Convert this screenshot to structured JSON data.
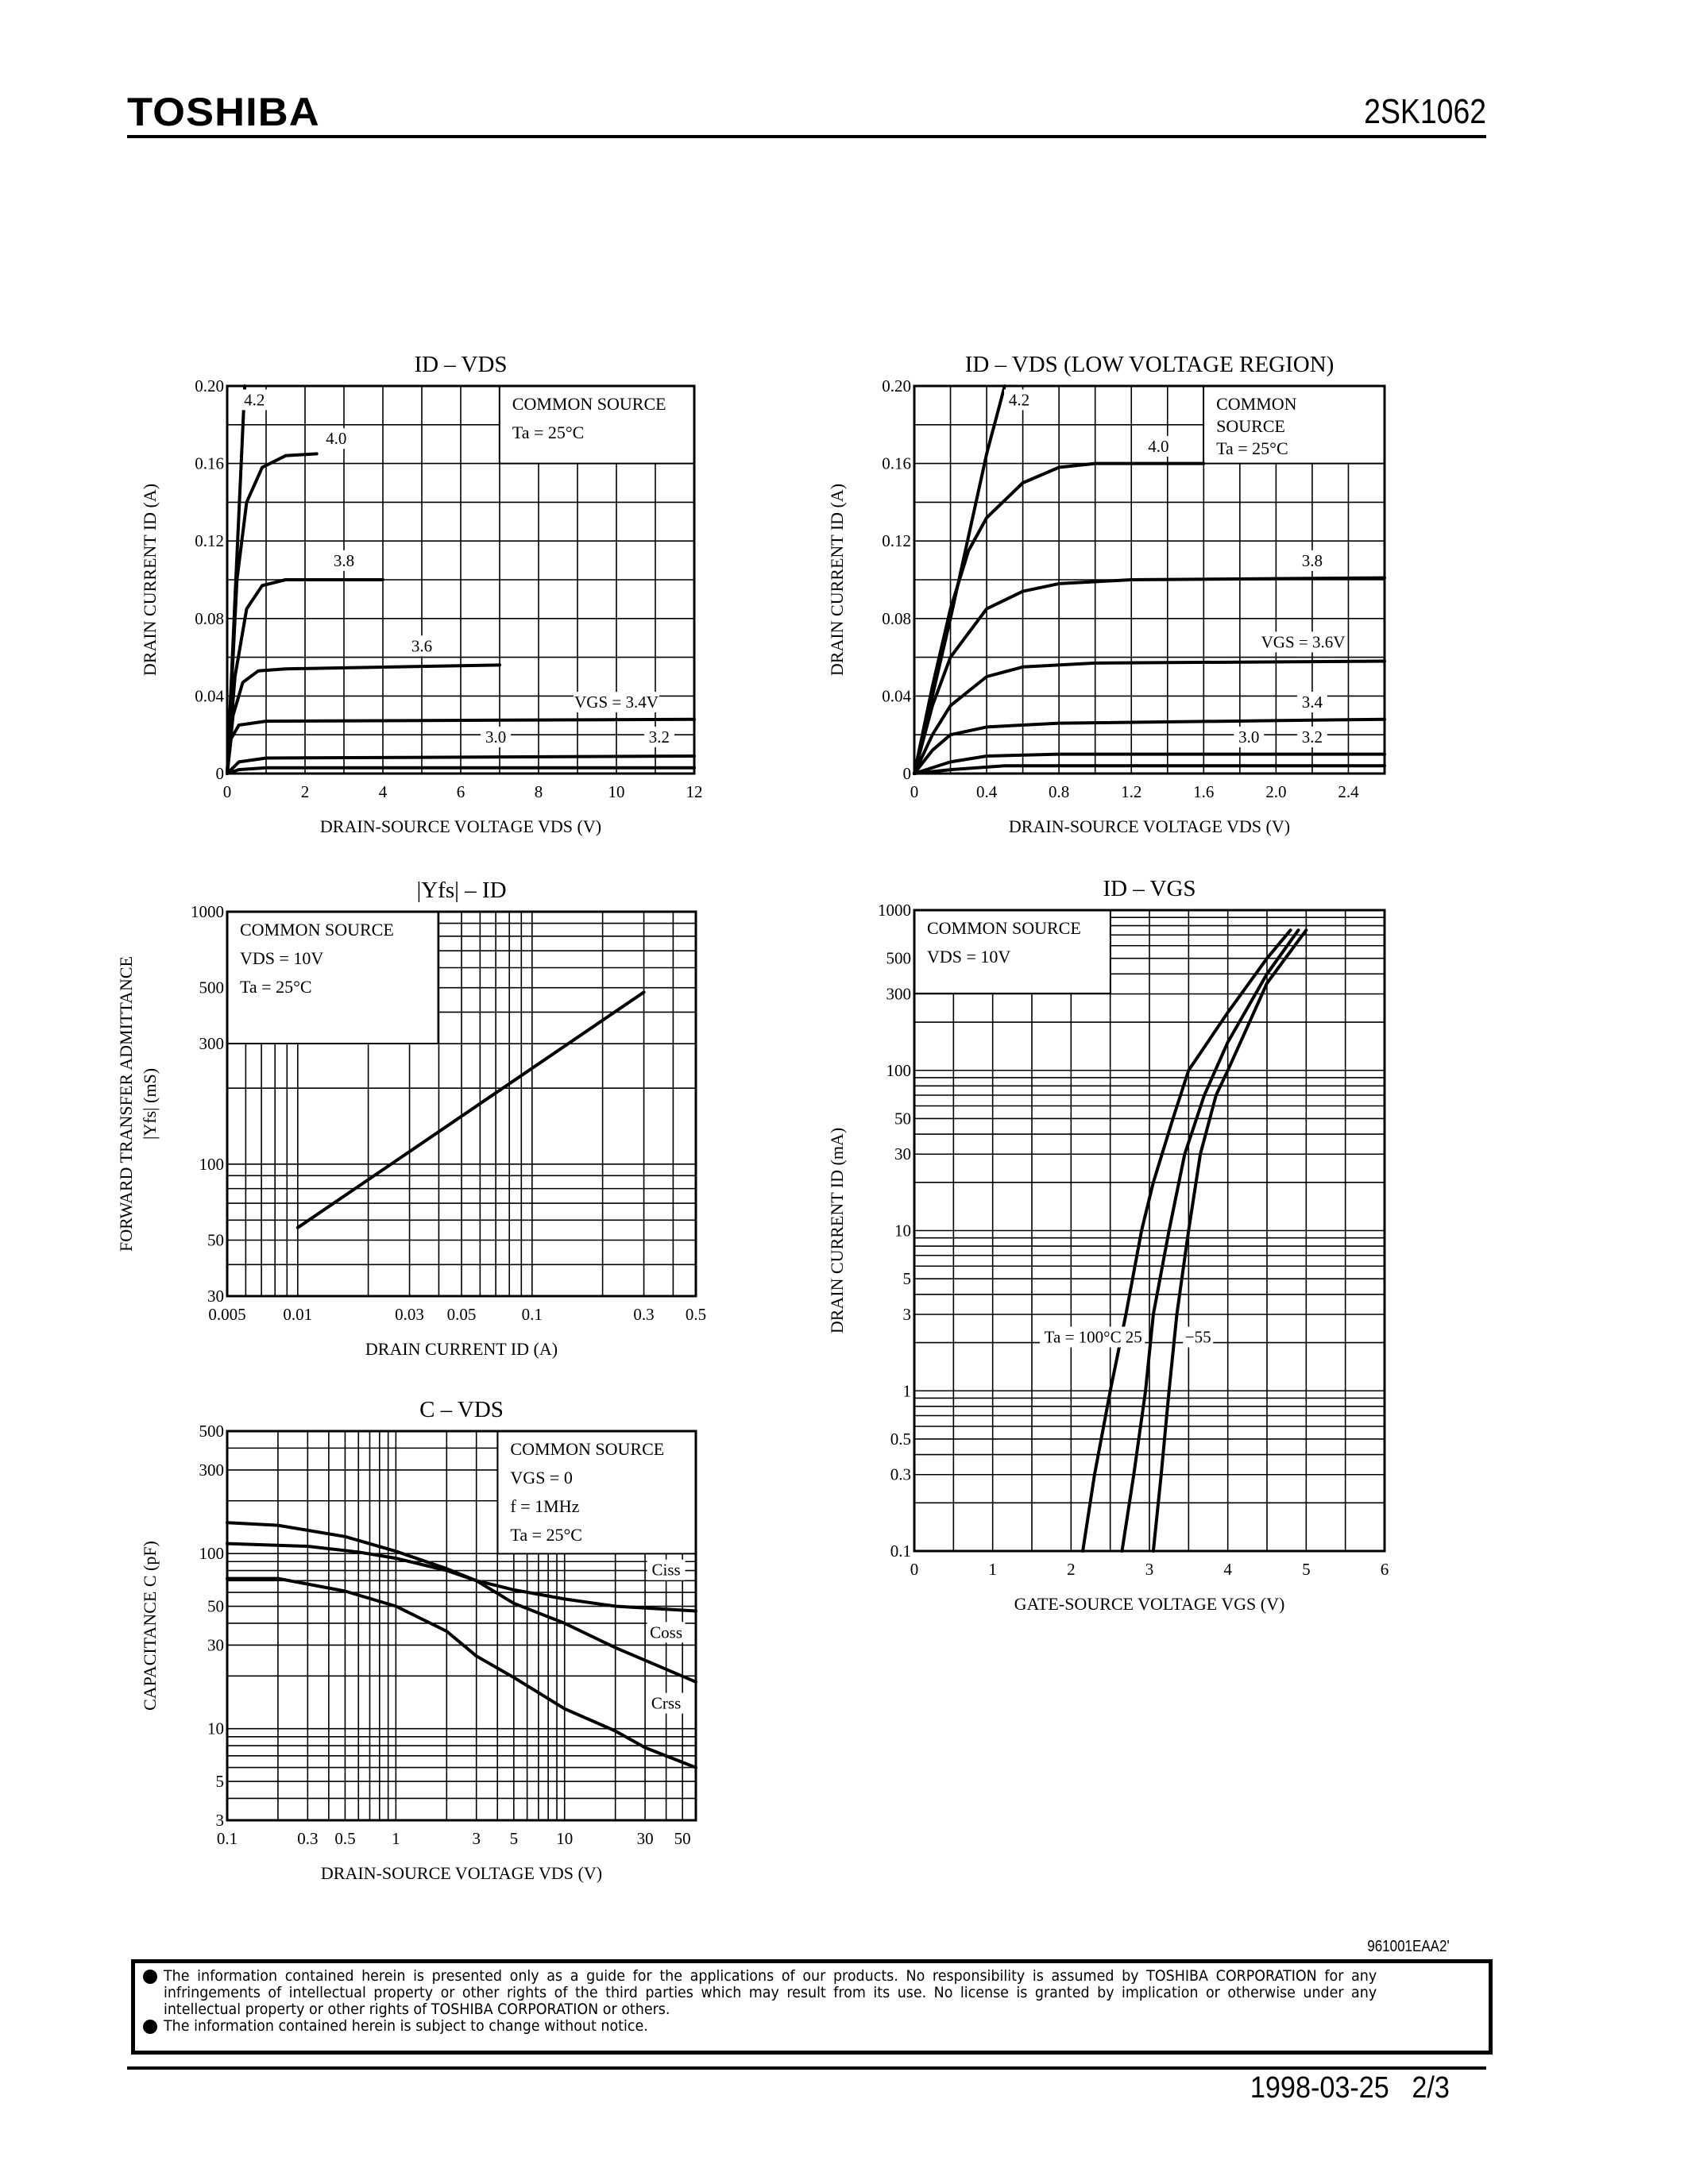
{
  "header": {
    "brand": "TOSHIBA",
    "part_number": "2SK1062"
  },
  "footer": {
    "doc_code": "961001EAA2'",
    "notices": [
      "The information contained herein is presented only as a guide for the applications of our products. No responsibility is assumed by TOSHIBA CORPORATION for any infringements of intellectual property or other rights of the third parties which may result from its use. No license is granted by implication or otherwise under any intellectual property or other rights of TOSHIBA CORPORATION or others.",
      "The information contained herein is subject to change without notice."
    ],
    "date": "1998-03-25",
    "page": "2/3"
  },
  "chart_data": [
    {
      "type": "line",
      "title": "ID – VDS",
      "xlabel": "DRAIN-SOURCE VOLTAGE   VDS   (V)",
      "ylabel": [
        "DRAIN CURRENT   ID   (A)"
      ],
      "xscale": "linear",
      "yscale": "linear",
      "xlim": [
        0,
        12
      ],
      "ylim": [
        0,
        0.2
      ],
      "xticks": [
        0,
        2,
        4,
        6,
        8,
        10,
        12
      ],
      "xtick_labels": [
        "0",
        "2",
        "4",
        "6",
        "8",
        "10",
        "12"
      ],
      "yticks": [
        0,
        0.04,
        0.08,
        0.12,
        0.16,
        0.2
      ],
      "ytick_labels": [
        "0",
        "0.04",
        "0.08",
        "0.12",
        "0.16",
        "0.20"
      ],
      "grid": true,
      "legend": "top-right",
      "conditions": [
        "COMMON SOURCE",
        "Ta = 25°C"
      ],
      "series": [
        {
          "name": "4.2",
          "points": [
            [
              0,
              0
            ],
            [
              0.2,
              0.09
            ],
            [
              0.45,
              0.2
            ]
          ]
        },
        {
          "name": "4.0",
          "points": [
            [
              0,
              0
            ],
            [
              0.25,
              0.1
            ],
            [
              0.5,
              0.14
            ],
            [
              0.9,
              0.158
            ],
            [
              1.5,
              0.164
            ],
            [
              2.3,
              0.165
            ]
          ]
        },
        {
          "name": "3.8",
          "points": [
            [
              0,
              0
            ],
            [
              0.2,
              0.05
            ],
            [
              0.5,
              0.085
            ],
            [
              0.9,
              0.097
            ],
            [
              1.5,
              0.1
            ],
            [
              4,
              0.1
            ]
          ]
        },
        {
          "name": "3.6",
          "points": [
            [
              0,
              0
            ],
            [
              0.15,
              0.03
            ],
            [
              0.4,
              0.047
            ],
            [
              0.8,
              0.053
            ],
            [
              1.5,
              0.054
            ],
            [
              7,
              0.056
            ]
          ]
        },
        {
          "name": "VGS = 3.4V",
          "points": [
            [
              0,
              0
            ],
            [
              0.1,
              0.018
            ],
            [
              0.3,
              0.025
            ],
            [
              1,
              0.027
            ],
            [
              12,
              0.028
            ]
          ]
        },
        {
          "name": "3.2",
          "points": [
            [
              0,
              0
            ],
            [
              0.3,
              0.006
            ],
            [
              1,
              0.008
            ],
            [
              12,
              0.009
            ]
          ]
        },
        {
          "name": "3.0",
          "points": [
            [
              0,
              0
            ],
            [
              0.3,
              0.002
            ],
            [
              1,
              0.003
            ],
            [
              12,
              0.003
            ]
          ]
        }
      ]
    },
    {
      "type": "line",
      "title": "ID – VDS  (LOW VOLTAGE REGION)",
      "xlabel": "DRAIN-SOURCE VOLTAGE   VDS   (V)",
      "ylabel": [
        "DRAIN CURRENT   ID   (A)"
      ],
      "xscale": "linear",
      "yscale": "linear",
      "xlim": [
        0,
        2.6
      ],
      "ylim": [
        0,
        0.2
      ],
      "xticks": [
        0,
        0.4,
        0.8,
        1.2,
        1.6,
        2.0,
        2.4
      ],
      "xtick_labels": [
        "0",
        "0.4",
        "0.8",
        "1.2",
        "1.6",
        "2.0",
        "2.4"
      ],
      "yticks": [
        0,
        0.04,
        0.08,
        0.12,
        0.16,
        0.2
      ],
      "ytick_labels": [
        "0",
        "0.04",
        "0.08",
        "0.12",
        "0.16",
        "0.20"
      ],
      "grid": true,
      "legend": "top-right",
      "conditions": [
        "COMMON",
        "SOURCE",
        "Ta = 25°C"
      ],
      "series": [
        {
          "name": "4.2",
          "points": [
            [
              0,
              0
            ],
            [
              0.2,
              0.08
            ],
            [
              0.4,
              0.165
            ],
            [
              0.5,
              0.2
            ]
          ]
        },
        {
          "name": "4.0",
          "points": [
            [
              0,
              0
            ],
            [
              0.1,
              0.045
            ],
            [
              0.2,
              0.085
            ],
            [
              0.3,
              0.115
            ],
            [
              0.4,
              0.132
            ],
            [
              0.6,
              0.15
            ],
            [
              0.8,
              0.158
            ],
            [
              1.0,
              0.16
            ],
            [
              1.6,
              0.16
            ]
          ]
        },
        {
          "name": "3.8",
          "points": [
            [
              0,
              0
            ],
            [
              0.1,
              0.035
            ],
            [
              0.2,
              0.06
            ],
            [
              0.4,
              0.085
            ],
            [
              0.6,
              0.094
            ],
            [
              0.8,
              0.098
            ],
            [
              1.2,
              0.1
            ],
            [
              2.6,
              0.101
            ]
          ]
        },
        {
          "name": "VGS = 3.6V",
          "points": [
            [
              0,
              0
            ],
            [
              0.1,
              0.02
            ],
            [
              0.2,
              0.035
            ],
            [
              0.4,
              0.05
            ],
            [
              0.6,
              0.055
            ],
            [
              1.0,
              0.057
            ],
            [
              2.6,
              0.058
            ]
          ]
        },
        {
          "name": "3.4",
          "points": [
            [
              0,
              0
            ],
            [
              0.1,
              0.012
            ],
            [
              0.2,
              0.02
            ],
            [
              0.4,
              0.024
            ],
            [
              0.8,
              0.026
            ],
            [
              2.6,
              0.028
            ]
          ]
        },
        {
          "name": "3.2",
          "points": [
            [
              0,
              0
            ],
            [
              0.2,
              0.006
            ],
            [
              0.4,
              0.009
            ],
            [
              0.8,
              0.01
            ],
            [
              2.6,
              0.01
            ]
          ]
        },
        {
          "name": "3.0",
          "points": [
            [
              0,
              0
            ],
            [
              0.2,
              0.002
            ],
            [
              0.5,
              0.004
            ],
            [
              2.6,
              0.004
            ]
          ]
        }
      ]
    },
    {
      "type": "line",
      "title": "|Yfs| – ID",
      "xlabel": "DRAIN CURRENT   ID   (A)",
      "ylabel": [
        "FORWARD TRANSFER ADMITTANCE",
        "|Yfs|   (mS)"
      ],
      "xscale": "log",
      "yscale": "log",
      "xlim": [
        0.005,
        0.5
      ],
      "ylim": [
        30,
        1000
      ],
      "xticks": [
        0.005,
        0.01,
        0.03,
        0.05,
        0.1,
        0.3,
        0.5
      ],
      "xtick_labels": [
        "0.005",
        "0.01",
        "0.03",
        "0.05",
        "0.1",
        "0.3",
        "0.5"
      ],
      "yticks": [
        30,
        50,
        100,
        300,
        500,
        1000
      ],
      "ytick_labels": [
        "30",
        "50",
        "100",
        "300",
        "500",
        "1000"
      ],
      "grid": true,
      "legend": "top-left",
      "conditions": [
        "COMMON SOURCE",
        "VDS = 10V",
        "Ta = 25°C"
      ],
      "series": [
        {
          "points": [
            [
              0.01,
              56
            ],
            [
              0.3,
              480
            ]
          ]
        }
      ]
    },
    {
      "type": "line",
      "title": "ID – VGS",
      "xlabel": "GATE-SOURCE VOLTAGE   VGS   (V)",
      "ylabel": [
        "DRAIN CURRENT   ID   (mA)"
      ],
      "xscale": "linear",
      "yscale": "log",
      "xlim": [
        0,
        6
      ],
      "ylim": [
        0.1,
        1000
      ],
      "xticks": [
        0,
        1,
        2,
        3,
        4,
        5,
        6
      ],
      "xtick_labels": [
        "0",
        "1",
        "2",
        "3",
        "4",
        "5",
        "6"
      ],
      "yticks": [
        0.1,
        0.3,
        0.5,
        1,
        3,
        5,
        10,
        30,
        50,
        100,
        300,
        500,
        1000
      ],
      "ytick_labels": [
        "0.1",
        "0.3",
        "0.5",
        "1",
        "3",
        "5",
        "10",
        "30",
        "50",
        "100",
        "300",
        "500",
        "1000"
      ],
      "grid": true,
      "legend": "top-left",
      "conditions": [
        "COMMON SOURCE",
        "VDS = 10V"
      ],
      "series": [
        {
          "name": "Ta = 100°C",
          "points": [
            [
              2.15,
              0.1
            ],
            [
              2.3,
              0.3
            ],
            [
              2.5,
              1
            ],
            [
              2.7,
              3
            ],
            [
              2.9,
              10
            ],
            [
              3.05,
              20
            ],
            [
              3.3,
              50
            ],
            [
              3.5,
              100
            ],
            [
              4,
              230
            ],
            [
              4.5,
              500
            ],
            [
              4.8,
              750
            ]
          ]
        },
        {
          "name": "25",
          "points": [
            [
              2.65,
              0.1
            ],
            [
              2.8,
              0.3
            ],
            [
              2.95,
              1
            ],
            [
              3.05,
              3
            ],
            [
              3.25,
              10
            ],
            [
              3.45,
              30
            ],
            [
              3.7,
              70
            ],
            [
              4,
              150
            ],
            [
              4.5,
              400
            ],
            [
              4.9,
              750
            ]
          ]
        },
        {
          "name": "−55",
          "points": [
            [
              3.05,
              0.1
            ],
            [
              3.15,
              0.3
            ],
            [
              3.25,
              1
            ],
            [
              3.35,
              3
            ],
            [
              3.5,
              10
            ],
            [
              3.65,
              30
            ],
            [
              3.85,
              70
            ],
            [
              4,
              100
            ],
            [
              4.5,
              350
            ],
            [
              5,
              750
            ]
          ]
        }
      ]
    },
    {
      "type": "line",
      "title": "C – VDS",
      "xlabel": "DRAIN-SOURCE VOLTAGE   VDS   (V)",
      "ylabel": [
        "CAPACITANCE   C   (pF)"
      ],
      "xscale": "log",
      "yscale": "log",
      "xlim": [
        0.1,
        60
      ],
      "ylim": [
        3,
        500
      ],
      "xticks": [
        0.1,
        0.3,
        0.5,
        1,
        3,
        5,
        10,
        30,
        50
      ],
      "xtick_labels": [
        "0.1",
        "0.3",
        "0.5",
        "1",
        "3",
        "5",
        "10",
        "30",
        "50"
      ],
      "yticks": [
        3,
        5,
        10,
        30,
        50,
        100,
        300,
        500
      ],
      "ytick_labels": [
        "3",
        "5",
        "10",
        "30",
        "50",
        "100",
        "300",
        "500"
      ],
      "grid": true,
      "legend": "top-right",
      "conditions": [
        "COMMON SOURCE",
        "VGS = 0",
        "f = 1MHz",
        "Ta = 25°C"
      ],
      "series": [
        {
          "name": "Ciss",
          "points": [
            [
              0.1,
              150
            ],
            [
              0.2,
              145
            ],
            [
              0.5,
              125
            ],
            [
              1,
              103
            ],
            [
              2,
              82
            ],
            [
              3,
              70
            ],
            [
              5,
              62
            ],
            [
              10,
              55
            ],
            [
              20,
              50
            ],
            [
              60,
              47
            ]
          ]
        },
        {
          "name": "Coss",
          "points": [
            [
              0.1,
              114
            ],
            [
              0.3,
              110
            ],
            [
              0.6,
              102
            ],
            [
              1,
              94
            ],
            [
              2,
              80
            ],
            [
              3,
              70
            ],
            [
              5,
              52
            ],
            [
              10,
              40
            ],
            [
              20,
              29
            ],
            [
              60,
              18.5
            ]
          ]
        },
        {
          "name": "Crss",
          "points": [
            [
              0.1,
              72
            ],
            [
              0.2,
              72
            ],
            [
              0.5,
              61
            ],
            [
              1,
              50
            ],
            [
              2,
              36
            ],
            [
              3,
              26
            ],
            [
              5,
              19.6
            ],
            [
              10,
              13
            ],
            [
              20,
              9.7
            ],
            [
              30,
              7.8
            ],
            [
              60,
              6
            ]
          ]
        }
      ]
    }
  ]
}
